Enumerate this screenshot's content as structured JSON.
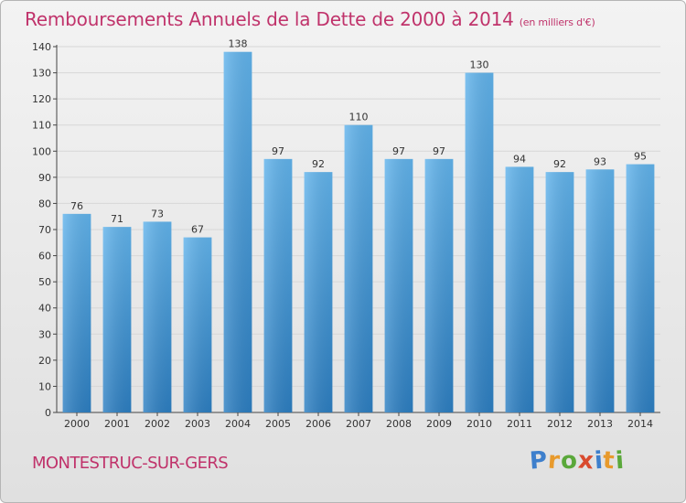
{
  "title": "Remboursements Annuels de la Dette de 2000 à 2014",
  "unit": "(en milliers d'€)",
  "location": "MONTESTRUC-SUR-GERS",
  "logo": {
    "letters": [
      "P",
      "r",
      "o",
      "x",
      "i",
      "t",
      "i"
    ],
    "colors": [
      "#3d7fcc",
      "#e89a2c",
      "#5aa83a",
      "#d94a2e",
      "#3d7fcc",
      "#e89a2c",
      "#5aa83a"
    ]
  },
  "colors": {
    "accent": "#c0336b",
    "bar_top": "#62b4ec",
    "bar_bottom": "#2d7fc2",
    "grid": "#d7d7d7",
    "axis": "#444444"
  },
  "chart_data": {
    "type": "bar",
    "categories": [
      "2000",
      "2001",
      "2002",
      "2003",
      "2004",
      "2005",
      "2006",
      "2007",
      "2008",
      "2009",
      "2010",
      "2011",
      "2012",
      "2013",
      "2014"
    ],
    "values": [
      76,
      71,
      73,
      67,
      138,
      97,
      92,
      110,
      97,
      97,
      130,
      94,
      92,
      93,
      95
    ],
    "ylim": [
      0,
      140
    ],
    "yticks": [
      0,
      10,
      20,
      30,
      40,
      50,
      60,
      70,
      80,
      90,
      100,
      110,
      120,
      130,
      140
    ],
    "grid": true,
    "data_labels": true,
    "xlabel": "",
    "ylabel": ""
  }
}
